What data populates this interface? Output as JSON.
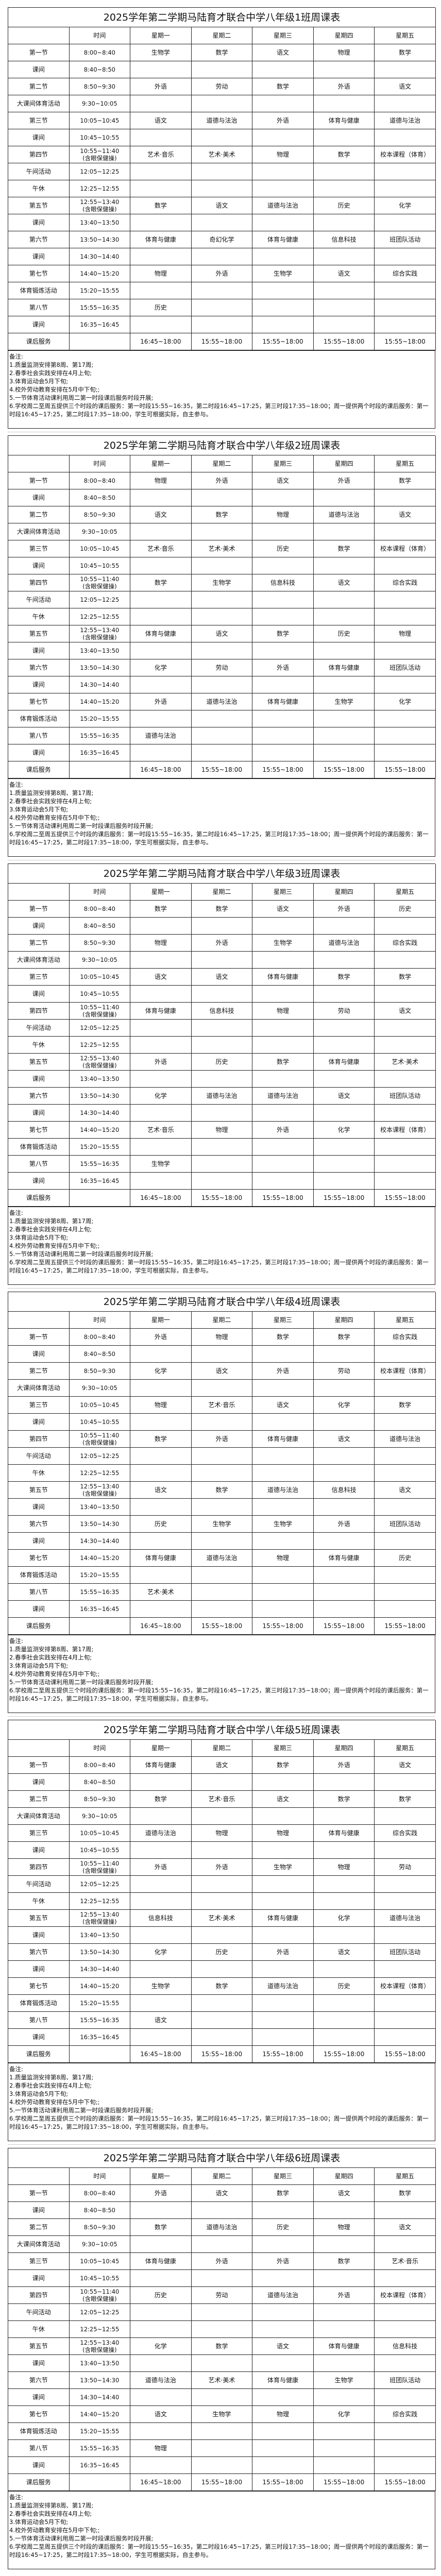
{
  "header": {
    "corner": "",
    "time": "时间",
    "days": [
      "星期一",
      "星期二",
      "星期三",
      "星期四",
      "星期五"
    ]
  },
  "periods": [
    {
      "label": "第一节",
      "time": "8:00~8:40",
      "lesson": 0
    },
    {
      "label": "课间",
      "time": "8:40~8:50"
    },
    {
      "label": "第二节",
      "time": "8:50~9:30",
      "lesson": 1
    },
    {
      "label": "大课间体育活动",
      "time": "9:30~10:05"
    },
    {
      "label": "第三节",
      "time": "10:05~10:45",
      "lesson": 2
    },
    {
      "label": "课间",
      "time": "10:45~10:55"
    },
    {
      "label": "第四节",
      "time": "10:55~11:40\n(含眼保健操)",
      "lesson": 3
    },
    {
      "label": "午间活动",
      "time": "12:05~12:25"
    },
    {
      "label": "午休",
      "time": "12:25~12:55"
    },
    {
      "label": "第五节",
      "time": "12:55~13:40\n(含眼保健操)",
      "lesson": 4
    },
    {
      "label": "课间",
      "time": "13:40~13:50"
    },
    {
      "label": "第六节",
      "time": "13:50~14:30",
      "lesson": 5
    },
    {
      "label": "课间",
      "time": "14:30~14:40"
    },
    {
      "label": "第七节",
      "time": "14:40~15:20",
      "lesson": 6
    },
    {
      "label": "体育锻炼活动",
      "time": "15:20~15:55"
    },
    {
      "label": "第八节",
      "time": "15:55~16:35",
      "lesson": 7
    },
    {
      "label": "课间",
      "time": "16:35~16:45"
    },
    {
      "label": "课后服务",
      "time": "",
      "after_school": true
    }
  ],
  "after_school": [
    "16:45~18:00",
    "15:55~18:00",
    "15:55~18:00",
    "15:55~18:00",
    "15:55~18:00"
  ],
  "notes": [
    "备注:",
    "1.质量监测安排第8周、第17周;",
    "2.春季社会实践安排在4月上旬;",
    "3.体育运动会5月下旬;",
    "4.校外劳动教育安排在5月中下旬;;",
    "5.一节体育活动课利用周二第一时段课后服务时段开展;",
    "6.学校周二至周五提供三个时段的课后服务：第一时段15:55~16:35，第二时段16:45~17:25，第三时段17:35~18:00；周一提供两个时段的课后服务：第一时段16:45~17:25，第二时段17:35~18:00，学生可根据实际，自主参与。"
  ],
  "tables": [
    {
      "title": "2025学年第二学期马陆育才联合中学八年级1班周课表",
      "lessons": [
        [
          "生物学",
          "数学",
          "语文",
          "物理",
          "数学"
        ],
        [
          "外语",
          "劳动",
          "数学",
          "外语",
          "语文"
        ],
        [
          "语文",
          "道德与法治",
          "外语",
          "体育与健康",
          "道德与法治"
        ],
        [
          "艺术·音乐",
          "艺术·美术",
          "物理",
          "数学",
          "校本课程（体育）"
        ],
        [
          "数学",
          "语文",
          "道德与法治",
          "历史",
          "化学"
        ],
        [
          "体育与健康",
          "奇幻化学",
          "体育与健康",
          "信息科技",
          "班团队活动"
        ],
        [
          "物理",
          "外语",
          "生物学",
          "语文",
          "综合实践"
        ],
        [
          "历史",
          "",
          "",
          "",
          ""
        ]
      ]
    },
    {
      "title": "2025学年第二学期马陆育才联合中学八年级2班周课表",
      "lessons": [
        [
          "物理",
          "外语",
          "语文",
          "外语",
          "数学"
        ],
        [
          "语文",
          "数学",
          "物理",
          "道德与法治",
          "语文"
        ],
        [
          "艺术·音乐",
          "艺术·美术",
          "历史",
          "数学",
          "校本课程（体育）"
        ],
        [
          "数学",
          "生物学",
          "信息科技",
          "语文",
          "综合实践"
        ],
        [
          "体育与健康",
          "语文",
          "数学",
          "历史",
          "物理"
        ],
        [
          "化学",
          "劳动",
          "外语",
          "体育与健康",
          "班团队活动"
        ],
        [
          "外语",
          "道德与法治",
          "体育与健康",
          "生物学",
          "化学"
        ],
        [
          "道德与法治",
          "",
          "",
          "",
          ""
        ]
      ]
    },
    {
      "title": "2025学年第二学期马陆育才联合中学八年级3班周课表",
      "lessons": [
        [
          "数学",
          "数学",
          "语文",
          "外语",
          "历史"
        ],
        [
          "物理",
          "外语",
          "生物学",
          "道德与法治",
          "综合实践"
        ],
        [
          "语文",
          "语文",
          "体育与健康",
          "数学",
          "数学"
        ],
        [
          "体育与健康",
          "信息科技",
          "物理",
          "劳动",
          "语文"
        ],
        [
          "外语",
          "历史",
          "数学",
          "体育与健康",
          "艺术·美术"
        ],
        [
          "化学",
          "道德与法治",
          "道德与法治",
          "语文",
          "班团队活动"
        ],
        [
          "艺术·音乐",
          "物理",
          "外语",
          "化学",
          "校本课程（体育）"
        ],
        [
          "生物学",
          "",
          "",
          "",
          ""
        ]
      ]
    },
    {
      "title": "2025学年第二学期马陆育才联合中学八年级4班周课表",
      "lessons": [
        [
          "外语",
          "物理",
          "数学",
          "数学",
          "综合实践"
        ],
        [
          "化学",
          "语文",
          "外语",
          "劳动",
          "校本课程（体育）"
        ],
        [
          "物理",
          "艺术·音乐",
          "语文",
          "化学",
          "数学"
        ],
        [
          "数学",
          "外语",
          "体育与健康",
          "语文",
          "道德与法治"
        ],
        [
          "语文",
          "数学",
          "道德与法治",
          "信息科技",
          "语文"
        ],
        [
          "历史",
          "生物学",
          "生物学",
          "外语",
          "班团队活动"
        ],
        [
          "体育与健康",
          "道德与法治",
          "物理",
          "体育与健康",
          "历史"
        ],
        [
          "艺术·美术",
          "",
          "",
          "",
          ""
        ]
      ]
    },
    {
      "title": "2025学年第二学期马陆育才联合中学八年级5班周课表",
      "lessons": [
        [
          "体育与健康",
          "语文",
          "数学",
          "外语",
          "语文"
        ],
        [
          "数学",
          "艺术·音乐",
          "语文",
          "数学",
          "数学"
        ],
        [
          "道德与法治",
          "物理",
          "物理",
          "体育与健康",
          "综合实践"
        ],
        [
          "外语",
          "外语",
          "生物学",
          "物理",
          "劳动"
        ],
        [
          "信息科技",
          "艺术·美术",
          "体育与健康",
          "化学",
          "道德与法治"
        ],
        [
          "化学",
          "历史",
          "外语",
          "语文",
          "班团队活动"
        ],
        [
          "生物学",
          "数学",
          "道德与法治",
          "历史",
          "校本课程（体育）"
        ],
        [
          "语文",
          "",
          "",
          "",
          ""
        ]
      ]
    },
    {
      "title": "2025学年第二学期马陆育才联合中学八年级6班周课表",
      "lessons": [
        [
          "外语",
          "语文",
          "数学",
          "语文",
          "数学"
        ],
        [
          "数学",
          "道德与法治",
          "历史",
          "物理",
          "语文"
        ],
        [
          "体育与健康",
          "外语",
          "外语",
          "数学",
          "艺术·音乐"
        ],
        [
          "历史",
          "劳动",
          "道德与法治",
          "外语",
          "校本课程（体育）"
        ],
        [
          "化学",
          "数学",
          "语文",
          "体育与健康",
          "信息科技"
        ],
        [
          "道德与法治",
          "艺术·美术",
          "体育与健康",
          "生物学",
          "班团队活动"
        ],
        [
          "语文",
          "生物学",
          "物理",
          "化学",
          "综合实践"
        ],
        [
          "物理",
          "",
          "",
          "",
          ""
        ]
      ]
    }
  ]
}
